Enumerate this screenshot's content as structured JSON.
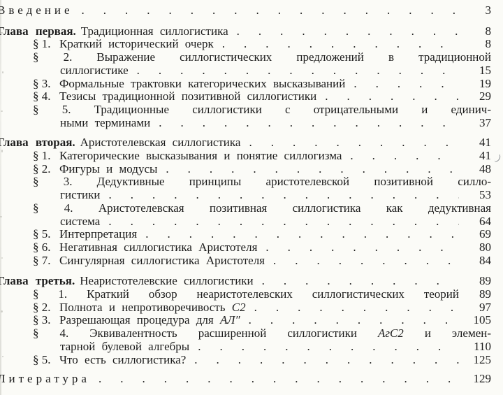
{
  "colors": {
    "paper": "#fbfbf7",
    "ink": "#1c1c1c"
  },
  "toc": {
    "lines": [
      {
        "kind": "spaced",
        "text": "Введение",
        "page": "3"
      },
      {
        "kind": "chapter",
        "bold": "Глава первая.",
        "title": "Традиционная силлогистика",
        "page": "8",
        "mt": 11
      },
      {
        "kind": "dots",
        "prefix": "§ 1.",
        "text": "Краткий исторический очерк",
        "page": "8"
      },
      {
        "kind": "just",
        "prefix": "§ 2.",
        "text": "Выражение силлогистических предложений в традиционной"
      },
      {
        "kind": "cont",
        "text": "силлогистике",
        "page": "15"
      },
      {
        "kind": "dots",
        "prefix": "§ 3.",
        "text": "Формальные трактовки категорических высказываний",
        "page": "19"
      },
      {
        "kind": "dots",
        "prefix": "§ 4.",
        "text": "Тезисы традиционной позитивной силлогистики",
        "page": "29"
      },
      {
        "kind": "just",
        "prefix": "§ 5.",
        "text": "Традиционные силлогистики с отрицательными и единич-"
      },
      {
        "kind": "cont",
        "text": "ными терминами",
        "page": "37"
      },
      {
        "kind": "chapter",
        "bold": "Глава вторая.",
        "title": "Аристотелевская силлогистика",
        "page": "41",
        "mt": 10
      },
      {
        "kind": "dots",
        "prefix": "§ 1.",
        "text": "Категорические высказывания и понятие силлогизма",
        "page": "41",
        "tick": true
      },
      {
        "kind": "dots",
        "prefix": "§ 2.",
        "text": "Фигуры и модусы",
        "page": "48"
      },
      {
        "kind": "just",
        "prefix": "§ 3.",
        "text": "Дедуктивные принципы аристотелевской позитивной силло-"
      },
      {
        "kind": "cont",
        "text": "гистики",
        "page": "53"
      },
      {
        "kind": "just",
        "prefix": "§ 4.",
        "text": "Аристотелевская позитивная силлогистика как дедуктивная"
      },
      {
        "kind": "cont",
        "text": "система",
        "page": "64"
      },
      {
        "kind": "dots",
        "prefix": "§ 5.",
        "text": "Интерпретация",
        "page": "69"
      },
      {
        "kind": "dots",
        "prefix": "§ 6.",
        "text": "Негативная силлогистика Аристотеля",
        "page": "80"
      },
      {
        "kind": "dots",
        "prefix": "§ 7.",
        "text": "Сингулярная силлогистика Аристотеля",
        "page": "84"
      },
      {
        "kind": "chapter",
        "bold": "Глава третья.",
        "title": "Неаристотелевские силлогистики",
        "page": "89",
        "mt": 11
      },
      {
        "kind": "justnum",
        "prefix": "§ 1.",
        "text": "Краткий обзор неаристотелевских силлогистических теорий",
        "page": "89"
      },
      {
        "kind": "dots",
        "prefix": "§ 2.",
        "text": "Полнота и непротиворечивость *С2*",
        "page": "97"
      },
      {
        "kind": "dots",
        "prefix": "§ 3.",
        "text": "Разрешающая процедура для *АЛ″*",
        "page": "105"
      },
      {
        "kind": "just",
        "prefix": "§ 4.",
        "text": "Эквивалентность расширенной силлогистики *АгС2* и элемен-"
      },
      {
        "kind": "cont",
        "text": "тарной булевой алгебры",
        "page": "110"
      },
      {
        "kind": "dots",
        "prefix": "§ 5.",
        "text": "Что есть силлогистика?",
        "page": "125"
      },
      {
        "kind": "spaced",
        "text": "Литература",
        "page": "129",
        "mt": 9
      }
    ]
  }
}
